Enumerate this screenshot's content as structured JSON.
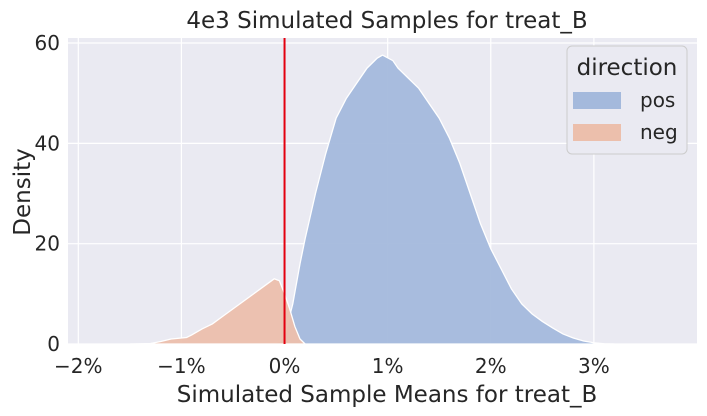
{
  "chart_data": {
    "type": "area",
    "title": "4e3 Simulated Samples for treat_B",
    "xlabel": "Simulated Sample Means for treat_B",
    "ylabel": "Density",
    "xlim": [
      -0.021,
      0.04
    ],
    "ylim": [
      0,
      61
    ],
    "xticks": [
      -0.02,
      -0.01,
      0.0,
      0.01,
      0.02,
      0.03
    ],
    "xtick_labels": [
      "−2%",
      "−1%",
      "0%",
      "1%",
      "2%",
      "3%"
    ],
    "yticks": [
      0,
      20,
      40,
      60
    ],
    "ytick_labels": [
      "0",
      "20",
      "40",
      "60"
    ],
    "stacked": true,
    "reference_line": {
      "x": 0.0,
      "color": "#e3000f"
    },
    "legend": {
      "title": "direction",
      "position": "top-right"
    },
    "series": [
      {
        "name": "pos",
        "color": "#a4b9dc",
        "points": [
          [
            -0.0015,
            0
          ],
          [
            -0.0005,
            0.5
          ],
          [
            0.0,
            1.5
          ],
          [
            0.0008,
            8
          ],
          [
            0.0015,
            16
          ],
          [
            0.002,
            21
          ],
          [
            0.003,
            30
          ],
          [
            0.004,
            38
          ],
          [
            0.005,
            45
          ],
          [
            0.006,
            49
          ],
          [
            0.007,
            52
          ],
          [
            0.008,
            55
          ],
          [
            0.009,
            57
          ],
          [
            0.0095,
            57.6
          ],
          [
            0.0105,
            56.5
          ],
          [
            0.011,
            55
          ],
          [
            0.012,
            53
          ],
          [
            0.013,
            51
          ],
          [
            0.014,
            48
          ],
          [
            0.015,
            45
          ],
          [
            0.016,
            41
          ],
          [
            0.017,
            36
          ],
          [
            0.018,
            30
          ],
          [
            0.019,
            24
          ],
          [
            0.02,
            19
          ],
          [
            0.021,
            15
          ],
          [
            0.022,
            11
          ],
          [
            0.023,
            8
          ],
          [
            0.024,
            6
          ],
          [
            0.025,
            4.5
          ],
          [
            0.026,
            3.2
          ],
          [
            0.027,
            2
          ],
          [
            0.028,
            1.2
          ],
          [
            0.029,
            0.6
          ],
          [
            0.03,
            0.25
          ],
          [
            0.031,
            0.05
          ],
          [
            0.032,
            0
          ]
        ]
      },
      {
        "name": "neg",
        "color": "#ecbfac",
        "points": [
          [
            -0.015,
            0
          ],
          [
            -0.013,
            0.1
          ],
          [
            -0.012,
            0.5
          ],
          [
            -0.011,
            1
          ],
          [
            -0.0095,
            1.3
          ],
          [
            -0.009,
            1.8
          ],
          [
            -0.008,
            3
          ],
          [
            -0.007,
            4
          ],
          [
            -0.006,
            5.5
          ],
          [
            -0.005,
            7
          ],
          [
            -0.004,
            8.5
          ],
          [
            -0.003,
            10
          ],
          [
            -0.002,
            11.5
          ],
          [
            -0.001,
            13
          ],
          [
            -0.0005,
            12.6
          ],
          [
            0.0,
            10
          ],
          [
            0.0005,
            7
          ],
          [
            0.001,
            3.5
          ],
          [
            0.0015,
            1
          ],
          [
            0.002,
            0
          ]
        ]
      }
    ]
  }
}
